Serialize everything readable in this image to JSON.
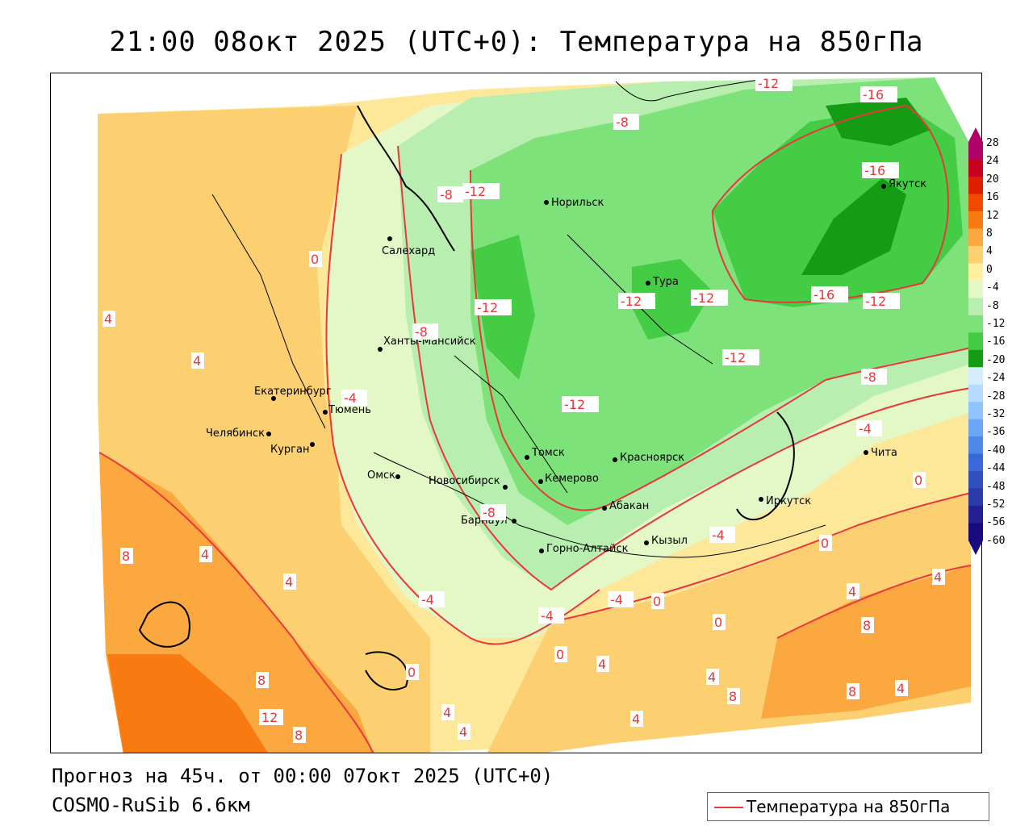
{
  "header": {
    "title": "21:00 08окт 2025 (UTC+0): Температура на 850гПа"
  },
  "footer": {
    "forecast": "Прогноз на 45ч. от 00:00 07окт 2025 (UTC+0)",
    "model": "COSMO-RuSib 6.6км"
  },
  "legend": {
    "label": "Температура на 850гПа",
    "line_color": "#e8383c"
  },
  "colorbar": {
    "levels": [
      "28",
      "24",
      "20",
      "16",
      "12",
      "8",
      "4",
      "0",
      "-4",
      "-8",
      "-12",
      "-16",
      "-20",
      "-24",
      "-28",
      "-32",
      "-36",
      "-40",
      "-44",
      "-48",
      "-52",
      "-56",
      "-60"
    ],
    "colors": [
      "#b0006a",
      "#c8001e",
      "#e01e00",
      "#f04a00",
      "#f87a10",
      "#fca840",
      "#fdd070",
      "#fff0a0",
      "#e4f7c6",
      "#b8efb0",
      "#7ee27a",
      "#44cc44",
      "#149d14",
      "#d6ecff",
      "#b6dbff",
      "#8ec4ff",
      "#6aa6f6",
      "#4c88ea",
      "#3a68d8",
      "#3050c0",
      "#2a3aa8",
      "#221f94",
      "#1a0a80"
    ]
  },
  "cities": [
    {
      "name": "Норильск"
    },
    {
      "name": "Салехард"
    },
    {
      "name": "Тура"
    },
    {
      "name": "Якутск"
    },
    {
      "name": "Ханты-Мансийск"
    },
    {
      "name": "Екатеринбург"
    },
    {
      "name": "Тюмень"
    },
    {
      "name": "Челябинск"
    },
    {
      "name": "Курган"
    },
    {
      "name": "Омск"
    },
    {
      "name": "Новосибирск"
    },
    {
      "name": "Томск"
    },
    {
      "name": "Кемерово"
    },
    {
      "name": "Красноярск"
    },
    {
      "name": "Абакан"
    },
    {
      "name": "Барнаул"
    },
    {
      "name": "Горно-Алтайск"
    },
    {
      "name": "Кызыл"
    },
    {
      "name": "Иркутск"
    },
    {
      "name": "Чита"
    }
  ],
  "contour_labels": [
    "-12",
    "-16",
    "-16",
    "-8",
    "-12",
    "-8",
    "-12",
    "-12",
    "-12",
    "-12",
    "-16",
    "-12",
    "-8",
    "-4",
    "-12",
    "-4",
    "-8",
    "-8",
    "-4",
    "-4",
    "-4",
    "-4",
    "0",
    "0",
    "0",
    "0",
    "0",
    "0",
    "0",
    "4",
    "4",
    "4",
    "4",
    "4",
    "4",
    "4",
    "4",
    "4",
    "4",
    "4",
    "4",
    "8",
    "8",
    "8",
    "8",
    "8",
    "8",
    "12"
  ]
}
